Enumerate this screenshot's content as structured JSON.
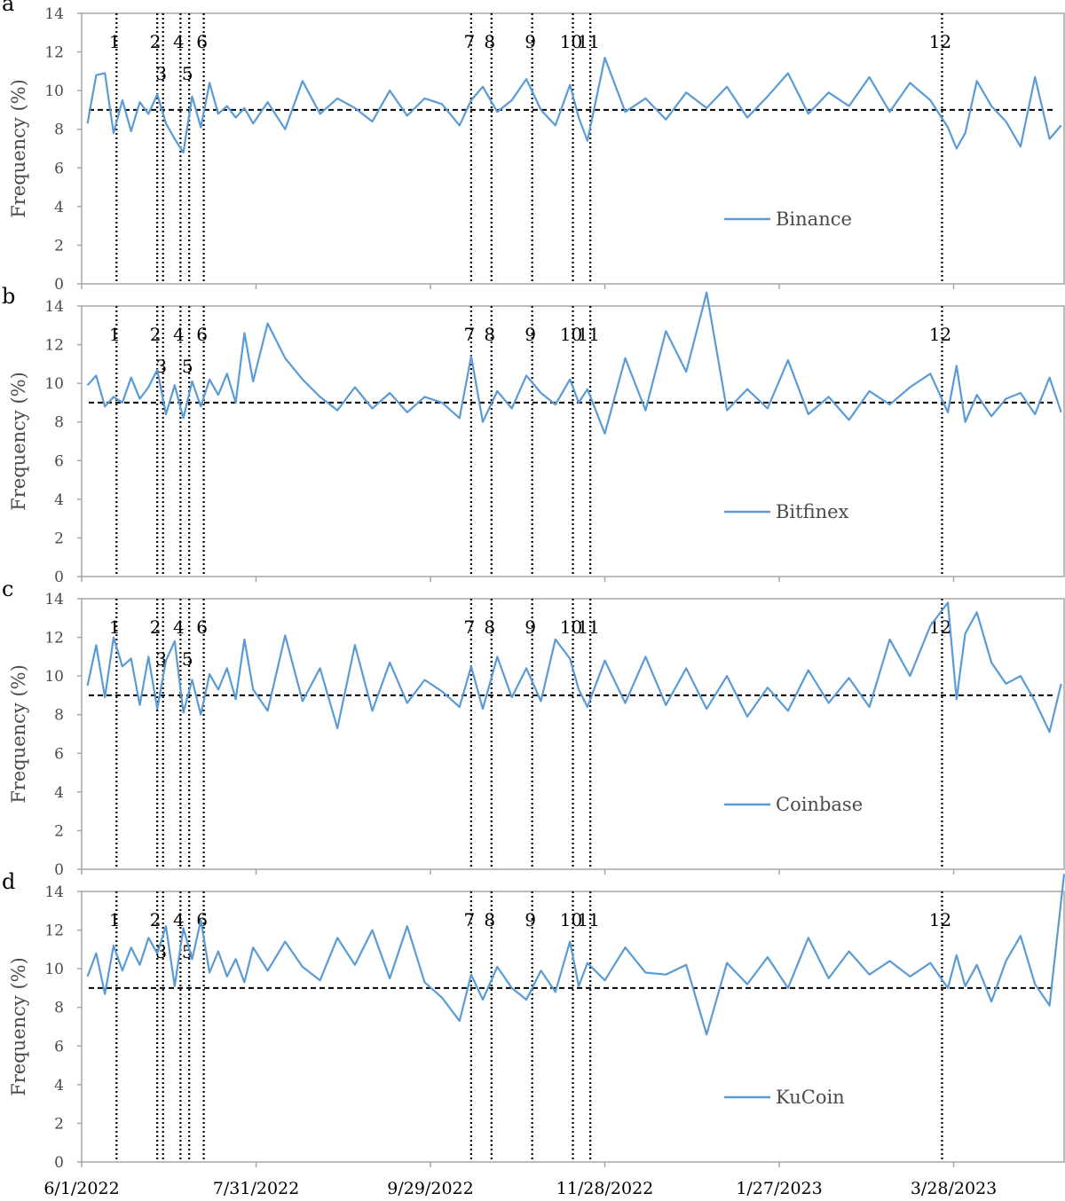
{
  "chart_data": [
    {
      "type": "line",
      "panel": "a",
      "ylabel": "Frequency (%)",
      "ylim": [
        0,
        14
      ],
      "yticks": [
        0,
        2,
        4,
        6,
        8,
        10,
        12,
        14
      ],
      "series": [
        {
          "name": "Binance",
          "color": "#5b9bd5",
          "x": [
            "2022-06-03",
            "2022-06-06",
            "2022-06-09",
            "2022-06-12",
            "2022-06-15",
            "2022-06-18",
            "2022-06-21",
            "2022-06-24",
            "2022-06-27",
            "2022-06-30",
            "2022-07-03",
            "2022-07-06",
            "2022-07-09",
            "2022-07-12",
            "2022-07-15",
            "2022-07-18",
            "2022-07-21",
            "2022-07-24",
            "2022-07-27",
            "2022-07-30",
            "2022-08-04",
            "2022-08-10",
            "2022-08-16",
            "2022-08-22",
            "2022-08-28",
            "2022-09-03",
            "2022-09-09",
            "2022-09-15",
            "2022-09-21",
            "2022-09-27",
            "2022-10-03",
            "2022-10-09",
            "2022-10-13",
            "2022-10-17",
            "2022-10-22",
            "2022-10-27",
            "2022-11-01",
            "2022-11-06",
            "2022-11-11",
            "2022-11-16",
            "2022-11-19",
            "2022-11-22",
            "2022-11-28",
            "2022-12-05",
            "2022-12-12",
            "2022-12-19",
            "2022-12-26",
            "2023-01-02",
            "2023-01-09",
            "2023-01-16",
            "2023-01-23",
            "2023-01-30",
            "2023-02-06",
            "2023-02-13",
            "2023-02-20",
            "2023-02-27",
            "2023-03-06",
            "2023-03-13",
            "2023-03-20",
            "2023-03-26",
            "2023-03-29",
            "2023-04-01",
            "2023-04-05",
            "2023-04-10",
            "2023-04-15",
            "2023-04-20",
            "2023-04-25",
            "2023-04-30",
            "2023-05-04"
          ],
          "values": [
            8.3,
            10.8,
            10.9,
            7.8,
            9.5,
            7.9,
            9.4,
            8.8,
            9.8,
            8.3,
            7.5,
            6.8,
            9.7,
            8.1,
            10.4,
            8.8,
            9.2,
            8.6,
            9.1,
            8.3,
            9.4,
            8.0,
            10.5,
            8.8,
            9.6,
            9.1,
            8.4,
            10.0,
            8.7,
            9.6,
            9.3,
            8.2,
            9.5,
            10.2,
            8.9,
            9.5,
            10.6,
            9.0,
            8.2,
            10.3,
            8.6,
            7.4,
            11.7,
            8.9,
            9.6,
            8.5,
            9.9,
            9.1,
            10.2,
            8.6,
            9.7,
            10.9,
            8.8,
            9.9,
            9.2,
            10.7,
            8.9,
            10.4,
            9.5,
            8.1,
            7.0,
            7.8,
            10.5,
            9.2,
            8.4,
            7.1,
            10.7,
            7.5,
            8.2
          ]
        }
      ],
      "reference_line": 9,
      "legend": "bottom-right"
    },
    {
      "type": "line",
      "panel": "b",
      "ylabel": "Frequency (%)",
      "ylim": [
        0,
        14
      ],
      "yticks": [
        0,
        2,
        4,
        6,
        8,
        10,
        12,
        14
      ],
      "series": [
        {
          "name": "Bitfinex",
          "color": "#5b9bd5",
          "x": [
            "2022-06-03",
            "2022-06-06",
            "2022-06-09",
            "2022-06-12",
            "2022-06-15",
            "2022-06-18",
            "2022-06-21",
            "2022-06-24",
            "2022-06-27",
            "2022-06-30",
            "2022-07-03",
            "2022-07-06",
            "2022-07-09",
            "2022-07-12",
            "2022-07-15",
            "2022-07-18",
            "2022-07-21",
            "2022-07-24",
            "2022-07-27",
            "2022-07-30",
            "2022-08-04",
            "2022-08-10",
            "2022-08-16",
            "2022-08-22",
            "2022-08-28",
            "2022-09-03",
            "2022-09-09",
            "2022-09-15",
            "2022-09-21",
            "2022-09-27",
            "2022-10-03",
            "2022-10-09",
            "2022-10-13",
            "2022-10-17",
            "2022-10-22",
            "2022-10-27",
            "2022-11-01",
            "2022-11-06",
            "2022-11-11",
            "2022-11-16",
            "2022-11-19",
            "2022-11-22",
            "2022-11-28",
            "2022-12-05",
            "2022-12-12",
            "2022-12-19",
            "2022-12-26",
            "2023-01-02",
            "2023-01-09",
            "2023-01-16",
            "2023-01-23",
            "2023-01-30",
            "2023-02-06",
            "2023-02-13",
            "2023-02-20",
            "2023-02-27",
            "2023-03-06",
            "2023-03-13",
            "2023-03-20",
            "2023-03-26",
            "2023-03-29",
            "2023-04-01",
            "2023-04-05",
            "2023-04-10",
            "2023-04-15",
            "2023-04-20",
            "2023-04-25",
            "2023-04-30",
            "2023-05-04"
          ],
          "values": [
            9.9,
            10.4,
            8.8,
            9.3,
            9.0,
            10.3,
            9.2,
            9.8,
            10.7,
            8.4,
            9.9,
            8.2,
            10.1,
            8.8,
            10.2,
            9.4,
            10.5,
            9.0,
            12.6,
            10.1,
            13.1,
            11.3,
            10.2,
            9.3,
            8.6,
            9.8,
            8.7,
            9.5,
            8.5,
            9.3,
            9.0,
            8.2,
            11.4,
            8.0,
            9.6,
            8.7,
            10.4,
            9.5,
            8.9,
            10.2,
            9.0,
            9.7,
            7.4,
            11.3,
            8.6,
            12.7,
            10.6,
            14.7,
            8.6,
            9.7,
            8.7,
            11.2,
            8.4,
            9.3,
            8.1,
            9.6,
            8.9,
            9.8,
            10.5,
            8.5,
            10.9,
            8.0,
            9.4,
            8.3,
            9.2,
            9.5,
            8.4,
            10.3,
            8.5
          ]
        }
      ],
      "reference_line": 9,
      "legend": "bottom-right"
    },
    {
      "type": "line",
      "panel": "c",
      "ylabel": "Frequency (%)",
      "ylim": [
        0,
        14
      ],
      "yticks": [
        0,
        2,
        4,
        6,
        8,
        10,
        12,
        14
      ],
      "series": [
        {
          "name": "Coinbase",
          "color": "#5b9bd5",
          "x": [
            "2022-06-03",
            "2022-06-06",
            "2022-06-09",
            "2022-06-12",
            "2022-06-15",
            "2022-06-18",
            "2022-06-21",
            "2022-06-24",
            "2022-06-27",
            "2022-06-30",
            "2022-07-03",
            "2022-07-06",
            "2022-07-09",
            "2022-07-12",
            "2022-07-15",
            "2022-07-18",
            "2022-07-21",
            "2022-07-24",
            "2022-07-27",
            "2022-07-30",
            "2022-08-04",
            "2022-08-10",
            "2022-08-16",
            "2022-08-22",
            "2022-08-28",
            "2022-09-03",
            "2022-09-09",
            "2022-09-15",
            "2022-09-21",
            "2022-09-27",
            "2022-10-03",
            "2022-10-09",
            "2022-10-13",
            "2022-10-17",
            "2022-10-22",
            "2022-10-27",
            "2022-11-01",
            "2022-11-06",
            "2022-11-11",
            "2022-11-16",
            "2022-11-19",
            "2022-11-22",
            "2022-11-28",
            "2022-12-05",
            "2022-12-12",
            "2022-12-19",
            "2022-12-26",
            "2023-01-02",
            "2023-01-09",
            "2023-01-16",
            "2023-01-23",
            "2023-01-30",
            "2023-02-06",
            "2023-02-13",
            "2023-02-20",
            "2023-02-27",
            "2023-03-06",
            "2023-03-13",
            "2023-03-20",
            "2023-03-26",
            "2023-03-29",
            "2023-04-01",
            "2023-04-05",
            "2023-04-10",
            "2023-04-15",
            "2023-04-20",
            "2023-04-25",
            "2023-04-30",
            "2023-05-04"
          ],
          "values": [
            9.5,
            11.6,
            8.9,
            12.0,
            10.5,
            10.9,
            8.5,
            11.0,
            8.3,
            10.8,
            11.8,
            8.1,
            9.8,
            8.0,
            10.1,
            9.3,
            10.4,
            8.8,
            11.9,
            9.3,
            8.2,
            12.1,
            8.7,
            10.4,
            7.3,
            11.6,
            8.2,
            10.7,
            8.6,
            9.8,
            9.2,
            8.4,
            10.5,
            8.3,
            11.0,
            8.9,
            10.4,
            8.7,
            11.9,
            10.9,
            9.3,
            8.4,
            10.8,
            8.6,
            11.0,
            8.5,
            10.4,
            8.3,
            10.0,
            7.9,
            9.4,
            8.2,
            10.3,
            8.6,
            9.9,
            8.4,
            11.9,
            10.0,
            12.6,
            13.8,
            8.8,
            12.2,
            13.3,
            10.7,
            9.6,
            10.0,
            8.7,
            7.1,
            9.6
          ]
        }
      ],
      "reference_line": 9,
      "legend": "bottom-right"
    },
    {
      "type": "line",
      "panel": "d",
      "ylabel": "Frequency (%)",
      "ylim": [
        0,
        14
      ],
      "yticks": [
        0,
        2,
        4,
        6,
        8,
        10,
        12,
        14
      ],
      "series": [
        {
          "name": "KuCoin",
          "color": "#5b9bd5",
          "x": [
            "2022-06-03",
            "2022-06-06",
            "2022-06-09",
            "2022-06-12",
            "2022-06-15",
            "2022-06-18",
            "2022-06-21",
            "2022-06-24",
            "2022-06-27",
            "2022-06-30",
            "2022-07-03",
            "2022-07-06",
            "2022-07-09",
            "2022-07-12",
            "2022-07-15",
            "2022-07-18",
            "2022-07-21",
            "2022-07-24",
            "2022-07-27",
            "2022-07-30",
            "2022-08-04",
            "2022-08-10",
            "2022-08-16",
            "2022-08-22",
            "2022-08-28",
            "2022-09-03",
            "2022-09-09",
            "2022-09-15",
            "2022-09-21",
            "2022-09-27",
            "2022-10-03",
            "2022-10-09",
            "2022-10-13",
            "2022-10-17",
            "2022-10-22",
            "2022-10-27",
            "2022-11-01",
            "2022-11-06",
            "2022-11-11",
            "2022-11-16",
            "2022-11-19",
            "2022-11-22",
            "2022-11-28",
            "2022-12-05",
            "2022-12-12",
            "2022-12-19",
            "2022-12-26",
            "2023-01-02",
            "2023-01-09",
            "2023-01-16",
            "2023-01-23",
            "2023-01-30",
            "2023-02-06",
            "2023-02-13",
            "2023-02-20",
            "2023-02-27",
            "2023-03-06",
            "2023-03-13",
            "2023-03-20",
            "2023-03-26",
            "2023-03-29",
            "2023-04-01",
            "2023-04-05",
            "2023-04-10",
            "2023-04-15",
            "2023-04-20",
            "2023-04-25",
            "2023-04-30",
            "2023-05-05"
          ],
          "values": [
            9.6,
            10.8,
            8.7,
            11.2,
            9.9,
            11.1,
            10.2,
            11.6,
            10.8,
            12.2,
            9.1,
            12.1,
            10.5,
            12.5,
            9.8,
            10.9,
            9.6,
            10.5,
            9.3,
            11.1,
            9.9,
            11.4,
            10.1,
            9.4,
            11.6,
            10.2,
            12.0,
            9.5,
            12.2,
            9.3,
            8.5,
            7.3,
            9.7,
            8.4,
            10.1,
            9.0,
            8.4,
            9.9,
            8.8,
            11.4,
            9.1,
            10.3,
            9.4,
            11.1,
            9.8,
            9.7,
            10.2,
            6.6,
            10.3,
            9.2,
            10.6,
            9.0,
            11.6,
            9.5,
            10.9,
            9.7,
            10.4,
            9.6,
            10.3,
            9.0,
            10.7,
            9.1,
            10.2,
            8.3,
            10.4,
            11.7,
            9.2,
            8.1,
            14.9
          ]
        }
      ],
      "reference_line": 9,
      "legend": "bottom-right"
    }
  ],
  "x_axis": {
    "tick_labels": [
      "6/1/2022",
      "7/31/2022",
      "9/29/2022",
      "11/28/2022",
      "1/27/2023",
      "3/28/2023"
    ],
    "tick_dates": [
      "2022-06-01",
      "2022-07-31",
      "2022-09-29",
      "2022-11-28",
      "2023-01-27",
      "2023-03-28"
    ],
    "range": [
      "2022-06-01",
      "2023-05-05"
    ]
  },
  "events": [
    {
      "label": "1",
      "date": "2022-06-13",
      "row": "top"
    },
    {
      "label": "2",
      "date": "2022-06-27",
      "row": "top"
    },
    {
      "label": "3",
      "date": "2022-06-29",
      "row": "bottom"
    },
    {
      "label": "4",
      "date": "2022-07-05",
      "row": "top"
    },
    {
      "label": "5",
      "date": "2022-07-08",
      "row": "bottom"
    },
    {
      "label": "6",
      "date": "2022-07-13",
      "row": "top"
    },
    {
      "label": "7",
      "date": "2022-10-13",
      "row": "top"
    },
    {
      "label": "8",
      "date": "2022-10-20",
      "row": "top"
    },
    {
      "label": "9",
      "date": "2022-11-03",
      "row": "top"
    },
    {
      "label": "10",
      "date": "2022-11-17",
      "row": "top"
    },
    {
      "label": "11",
      "date": "2022-11-23",
      "row": "top"
    },
    {
      "label": "12",
      "date": "2023-03-24",
      "row": "top"
    }
  ]
}
